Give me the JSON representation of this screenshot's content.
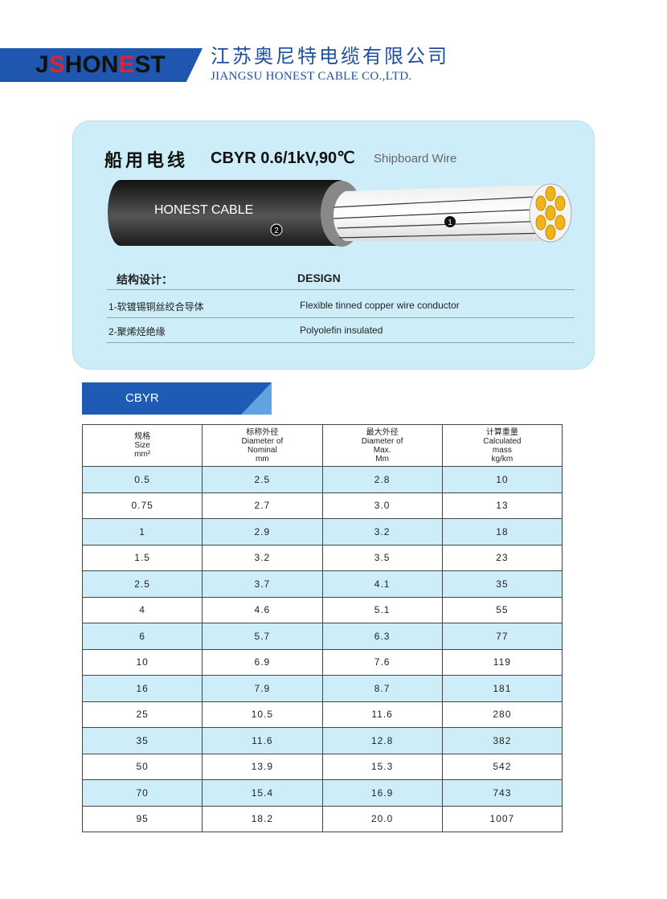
{
  "header": {
    "logo": "JSHONEST",
    "company_cn": "江苏奥尼特电缆有限公司",
    "company_en": "JIANGSU HONEST CABLE CO.,LTD."
  },
  "product": {
    "title_cn": "船用电线",
    "model": "CBYR 0.6/1kV,90℃",
    "title_en": "Shipboard Wire",
    "cable_print": "HONEST CABLE",
    "marker_1": "1",
    "marker_2": "2"
  },
  "design": {
    "heading_cn": "结构设计：",
    "heading_en": "DESIGN",
    "rows": [
      {
        "cn": "1-软镀锡铜丝绞合导体",
        "en": "Flexible tinned copper wire conductor"
      },
      {
        "cn": "2-聚烯烃绝缘",
        "en": "Polyolefin insulated"
      }
    ]
  },
  "section_tab": "CBYR",
  "table": {
    "headers": [
      [
        "规格",
        "Size",
        "mm²"
      ],
      [
        "标称外径",
        "Diameter of",
        "Nominal",
        "mm"
      ],
      [
        "最大外径",
        "Diameter of",
        "Max.",
        "Mm"
      ],
      [
        "计算重量",
        "Calculated",
        "mass",
        "kg/km"
      ]
    ],
    "rows": [
      [
        "0.5",
        "2.5",
        "2.8",
        "10"
      ],
      [
        "0.75",
        "2.7",
        "3.0",
        "13"
      ],
      [
        "1",
        "2.9",
        "3.2",
        "18"
      ],
      [
        "1.5",
        "3.2",
        "3.5",
        "23"
      ],
      [
        "2.5",
        "3.7",
        "4.1",
        "35"
      ],
      [
        "4",
        "4.6",
        "5.1",
        "55"
      ],
      [
        "6",
        "5.7",
        "6.3",
        "77"
      ],
      [
        "10",
        "6.9",
        "7.6",
        "119"
      ],
      [
        "16",
        "7.9",
        "8.7",
        "181"
      ],
      [
        "25",
        "10.5",
        "11.6",
        "280"
      ],
      [
        "35",
        "11.6",
        "12.8",
        "382"
      ],
      [
        "50",
        "13.9",
        "15.3",
        "542"
      ],
      [
        "70",
        "15.4",
        "16.9",
        "743"
      ],
      [
        "95",
        "18.2",
        "20.0",
        "1007"
      ]
    ]
  },
  "colors": {
    "brand_blue": "#1e5bb5",
    "panel": "#cdeef9",
    "logo_red": "#e0242b"
  }
}
